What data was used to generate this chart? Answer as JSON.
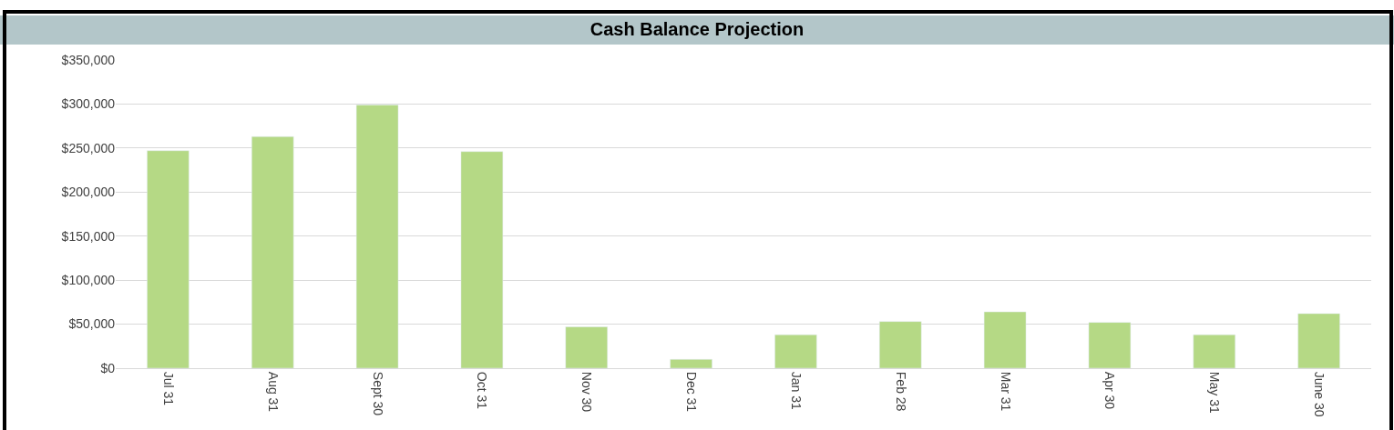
{
  "chart_data": {
    "type": "bar",
    "title": "Cash Balance Projection",
    "categories": [
      "Jul 31",
      "Aug 31",
      "Sept 30",
      "Oct 31",
      "Nov 30",
      "Dec 31",
      "Jan 31",
      "Feb 28",
      "Mar 31",
      "Apr 30",
      "May 31",
      "June 30"
    ],
    "values": [
      247000,
      263000,
      299000,
      246000,
      47000,
      10000,
      38000,
      53000,
      64000,
      52000,
      38000,
      62000
    ],
    "color": "#b5d985",
    "ylim": [
      0,
      350000
    ],
    "yticks": [
      {
        "value": 0,
        "label": "$0"
      },
      {
        "value": 50000,
        "label": "$50,000"
      },
      {
        "value": 100000,
        "label": "$100,000"
      },
      {
        "value": 150000,
        "label": "$150,000"
      },
      {
        "value": 200000,
        "label": "$200,000"
      },
      {
        "value": 250000,
        "label": "$250,000"
      },
      {
        "value": 300000,
        "label": "$300,000"
      },
      {
        "value": 350000,
        "label": "$350,000"
      }
    ],
    "grid": "y"
  }
}
